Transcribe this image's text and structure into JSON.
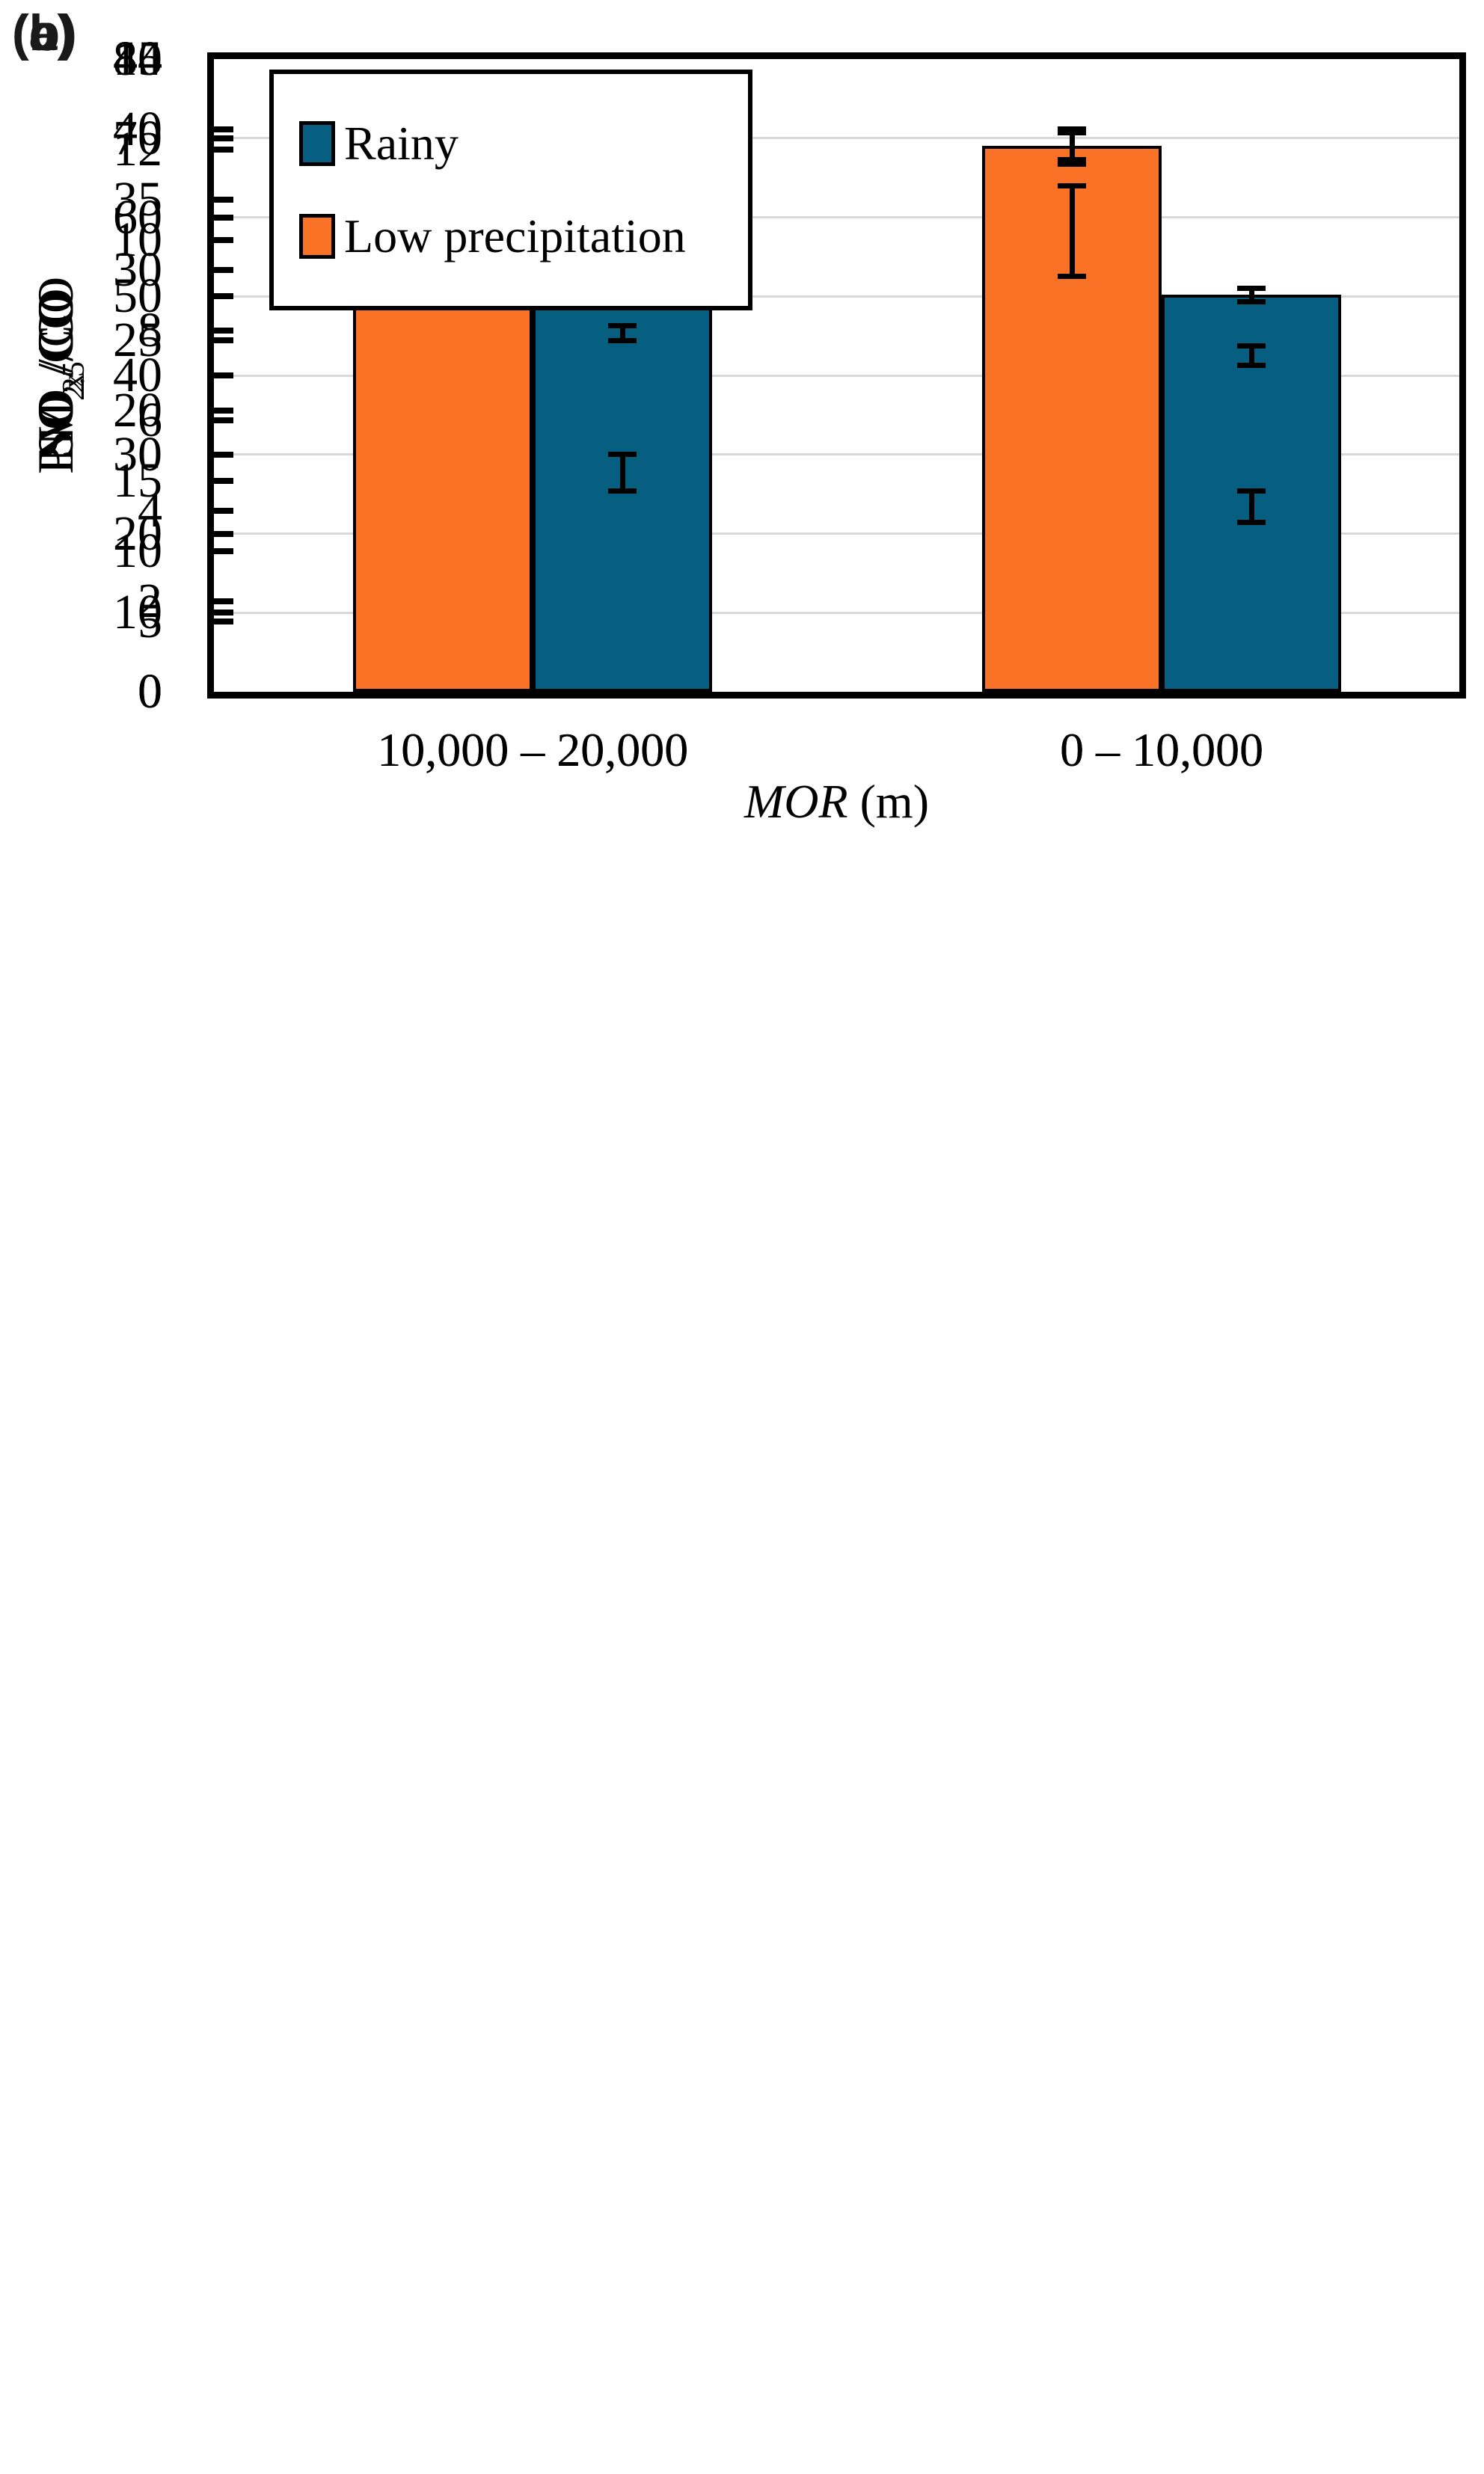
{
  "figure": {
    "xlabel": {
      "italic": "MOR",
      "rest": " (m)"
    }
  },
  "legend": {
    "items": [
      {
        "label": "Rainy",
        "color": "#065e80"
      },
      {
        "label": "Low precipitation",
        "color": "#fa7226"
      }
    ]
  },
  "colors": {
    "low_precipitation": "#fa7226",
    "rainy": "#065e80",
    "gridline": "#d9d9d9",
    "axis": "#000000"
  },
  "chart_data": [
    {
      "type": "bar",
      "panel_label": "(a)",
      "ylabel_parts": [
        {
          "text": "PM",
          "sub": false
        },
        {
          "text": "2.5",
          "sub": true
        },
        {
          "text": "/CO",
          "sub": false
        }
      ],
      "ylim": [
        0,
        45
      ],
      "yticks": [
        0,
        5,
        10,
        15,
        20,
        25,
        30,
        35,
        40,
        45
      ],
      "categories": [
        "10,000 – 20,000",
        "0 – 10,000"
      ],
      "grid": true,
      "legend_position": "top-left",
      "series": [
        {
          "name": "Low precipitation",
          "color_key": "low_precipitation",
          "values": [
            29.0,
            38.8
          ],
          "errors": [
            0.55,
            1.25
          ]
        },
        {
          "name": "Rainy",
          "color_key": "rainy",
          "values": [
            25.5,
            23.9
          ],
          "errors": [
            0.55,
            0.7
          ]
        }
      ]
    },
    {
      "type": "bar",
      "panel_label": "(b)",
      "ylabel_parts": [
        {
          "text": "SO",
          "sub": false
        },
        {
          "text": "2",
          "sub": true
        },
        {
          "text": "/CO",
          "sub": false
        }
      ],
      "ylim": [
        0,
        14
      ],
      "yticks": [
        0,
        2,
        4,
        6,
        8,
        10,
        12,
        14
      ],
      "categories": [
        "10,000 – 20,000",
        "0 – 10,000"
      ],
      "grid": true,
      "series": [
        {
          "name": "Low precipitation",
          "color_key": "low_precipitation",
          "values": [
            11.35,
            10.2
          ],
          "errors": [
            0.65,
            1.0
          ]
        },
        {
          "name": "Rainy",
          "color_key": "rainy",
          "values": [
            4.85,
            4.1
          ],
          "errors": [
            0.4,
            0.35
          ]
        }
      ]
    },
    {
      "type": "bar",
      "panel_label": "(c)",
      "ylabel_parts": [
        {
          "text": "NO",
          "sub": false
        },
        {
          "text": "x",
          "sub": true
        },
        {
          "text": "/CO",
          "sub": false
        }
      ],
      "ylim": [
        0,
        80
      ],
      "yticks": [
        0,
        10,
        20,
        30,
        40,
        50,
        60,
        70,
        80
      ],
      "categories": [
        "10,000 – 20,000",
        "0 – 10,000"
      ],
      "grid": true,
      "series": [
        {
          "name": "Low precipitation",
          "color_key": "low_precipitation",
          "values": [
            60.5,
            69.0
          ],
          "errors": [
            1.0,
            1.7
          ]
        },
        {
          "name": "Rainy",
          "color_key": "rainy",
          "values": [
            54.8,
            50.2
          ],
          "errors": [
            0.8,
            0.85
          ]
        }
      ]
    }
  ]
}
